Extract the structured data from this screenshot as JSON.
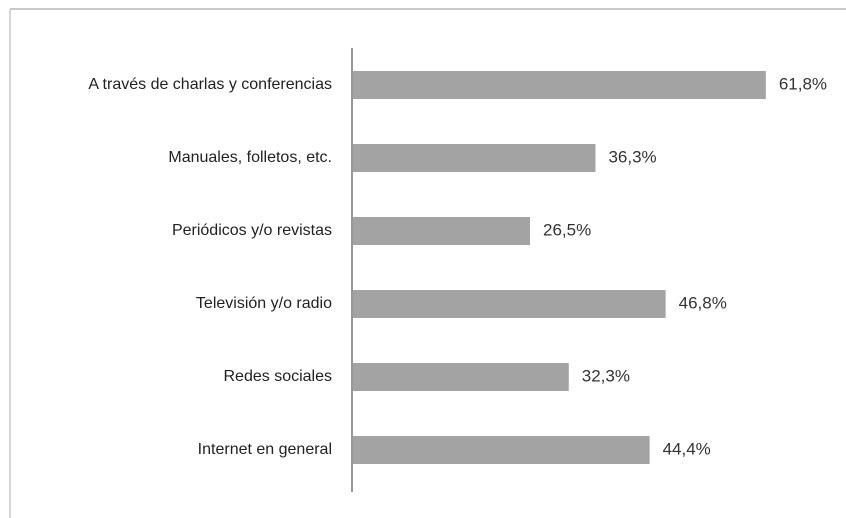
{
  "chart_data": {
    "type": "bar",
    "orientation": "horizontal",
    "categories": [
      "A través de charlas y conferencias",
      "Manuales, folletos, etc.",
      "Periódicos y/o revistas",
      "Televisión y/o radio",
      "Redes sociales",
      "Internet en general"
    ],
    "values": [
      61.8,
      36.3,
      26.5,
      46.8,
      32.3,
      44.4
    ],
    "value_labels": [
      "61,8%",
      "36,3%",
      "26,5%",
      "46,8%",
      "32,3%",
      "44,4%"
    ],
    "color": "#a3a3a3"
  }
}
